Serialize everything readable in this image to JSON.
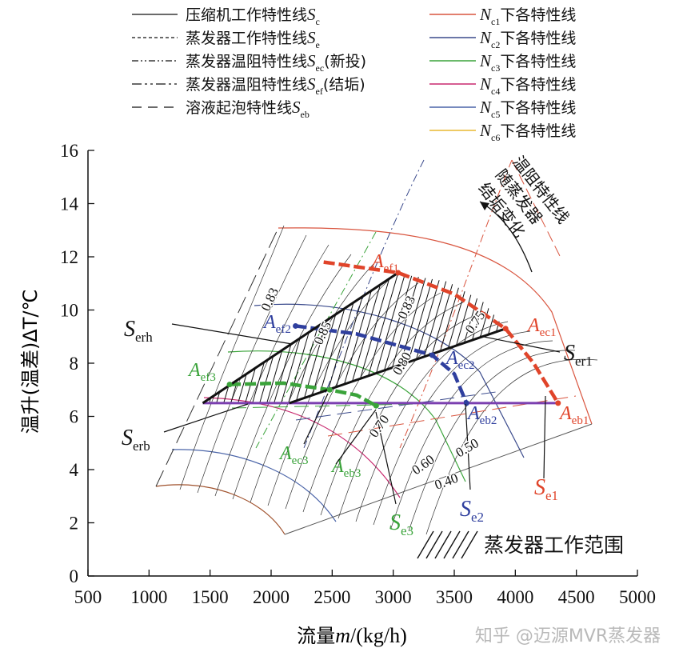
{
  "legend": {
    "left": [
      {
        "text": "压缩机工作特性线",
        "sym": "S",
        "sub": "c",
        "suffix": "",
        "dash": "none"
      },
      {
        "text": "蒸发器工作特性线",
        "sym": "S",
        "sub": "e",
        "suffix": "",
        "dash": "4 3"
      },
      {
        "text": "蒸发器温阻特性线",
        "sym": "S",
        "sub": "ec",
        "suffix": "(新投)",
        "dash": "8 3 2 3 2 3"
      },
      {
        "text": "蒸发器温阻特性线",
        "sym": "S",
        "sub": "ef",
        "suffix": "(结垢)",
        "dash": "12 4 3 4 3 4"
      },
      {
        "text": "溶液起泡特性线",
        "sym": "S",
        "sub": "eb",
        "suffix": "",
        "dash": "12 8"
      }
    ],
    "right": [
      {
        "sym": "N",
        "sub": "c1",
        "text": "下各特性线",
        "color": "#d9553f"
      },
      {
        "sym": "N",
        "sub": "c2",
        "text": "下各特性线",
        "color": "#3a4a8c"
      },
      {
        "sym": "N",
        "sub": "c3",
        "text": "下各特性线",
        "color": "#3aa33a"
      },
      {
        "sym": "N",
        "sub": "c4",
        "text": "下各特性线",
        "color": "#c8286e"
      },
      {
        "sym": "N",
        "sub": "c5",
        "text": "下各特性线",
        "color": "#4a64a8"
      },
      {
        "sym": "N",
        "sub": "c6",
        "text": "下各特性线",
        "color": "#e8b830"
      }
    ]
  },
  "chart_data": {
    "type": "line",
    "xlabel": {
      "pre": "流量",
      "sym": "m",
      "post": "/(kg/h)"
    },
    "ylabel": "温升(温差)ΔT/℃",
    "xlim": [
      500,
      5000
    ],
    "ylim": [
      0,
      16
    ],
    "x_ticks": [
      "500",
      "1000",
      "1500",
      "2000",
      "2500",
      "3000",
      "3500",
      "4000",
      "4500",
      "5000"
    ],
    "y_ticks": [
      "0",
      "2",
      "4",
      "6",
      "8",
      "10",
      "12",
      "14",
      "16"
    ],
    "grid": false,
    "operating_curves": [
      {
        "name": "Nc1",
        "color": "#e0442a",
        "points": [
          [
            2430,
            11.8
          ],
          [
            3040,
            11.4
          ],
          [
            3500,
            10.6
          ],
          [
            3920,
            9.3
          ],
          [
            4150,
            8.0
          ],
          [
            4350,
            6.5
          ]
        ]
      },
      {
        "name": "Nc2",
        "color": "#2f3f9e",
        "points": [
          [
            2200,
            9.4
          ],
          [
            2700,
            9.1
          ],
          [
            3320,
            8.3
          ],
          [
            3500,
            7.6
          ],
          [
            3600,
            6.5
          ]
        ]
      },
      {
        "name": "Nc3",
        "color": "#3aa33a",
        "points": [
          [
            1660,
            7.2
          ],
          [
            2100,
            7.25
          ],
          [
            2480,
            7.0
          ],
          [
            2700,
            6.8
          ],
          [
            2860,
            6.4
          ]
        ]
      }
    ],
    "bubble_line": {
      "color": "#7b3fb0",
      "x": [
        1440,
        4350
      ],
      "y": 6.5
    },
    "boundary_lines": {
      "Serh": [
        [
          1440,
          6.5
        ],
        [
          3040,
          11.4
        ]
      ],
      "Ser1": [
        [
          2150,
          6.5
        ],
        [
          3920,
          9.3
        ]
      ]
    },
    "points": [
      {
        "main": "A",
        "sub": "ef1",
        "color": "#e0442a",
        "x": 3040,
        "y": 11.4
      },
      {
        "main": "A",
        "sub": "ec1",
        "color": "#e0442a",
        "x": 3920,
        "y": 9.3
      },
      {
        "main": "A",
        "sub": "eb1",
        "color": "#e0442a",
        "x": 4350,
        "y": 6.5
      },
      {
        "main": "A",
        "sub": "ef2",
        "color": "#2f3f9e",
        "x": 2200,
        "y": 9.4
      },
      {
        "main": "A",
        "sub": "ec2",
        "color": "#2f3f9e",
        "x": 3320,
        "y": 8.3
      },
      {
        "main": "A",
        "sub": "eb2",
        "color": "#2f3f9e",
        "x": 3600,
        "y": 6.5
      },
      {
        "main": "A",
        "sub": "ef3",
        "color": "#3aa33a",
        "x": 1660,
        "y": 7.2
      },
      {
        "main": "A",
        "sub": "ec3",
        "color": "#3aa33a",
        "x": 2480,
        "y": 7.0
      },
      {
        "main": "A",
        "sub": "eb3",
        "color": "#3aa33a",
        "x": 2860,
        "y": 6.4
      }
    ],
    "line_labels": [
      {
        "main": "S",
        "sub": "erh",
        "color": "#111"
      },
      {
        "main": "S",
        "sub": "er1",
        "color": "#111"
      },
      {
        "main": "S",
        "sub": "erb",
        "color": "#111"
      },
      {
        "main": "S",
        "sub": "e1",
        "color": "#e0442a"
      },
      {
        "main": "S",
        "sub": "e2",
        "color": "#2f3f9e"
      },
      {
        "main": "S",
        "sub": "e3",
        "color": "#3aa33a"
      }
    ],
    "efficiency_labels": [
      "0.83",
      "0.85",
      "0.83",
      "0.80",
      "0.75",
      "0.70",
      "0.60",
      "0.50",
      "0.40"
    ],
    "annotation": [
      "温阻特性线",
      "随蒸发器",
      "结垢变化"
    ],
    "region_legend": "蒸发器工作范围"
  },
  "watermark": "知乎 @迈源MVR蒸发器"
}
